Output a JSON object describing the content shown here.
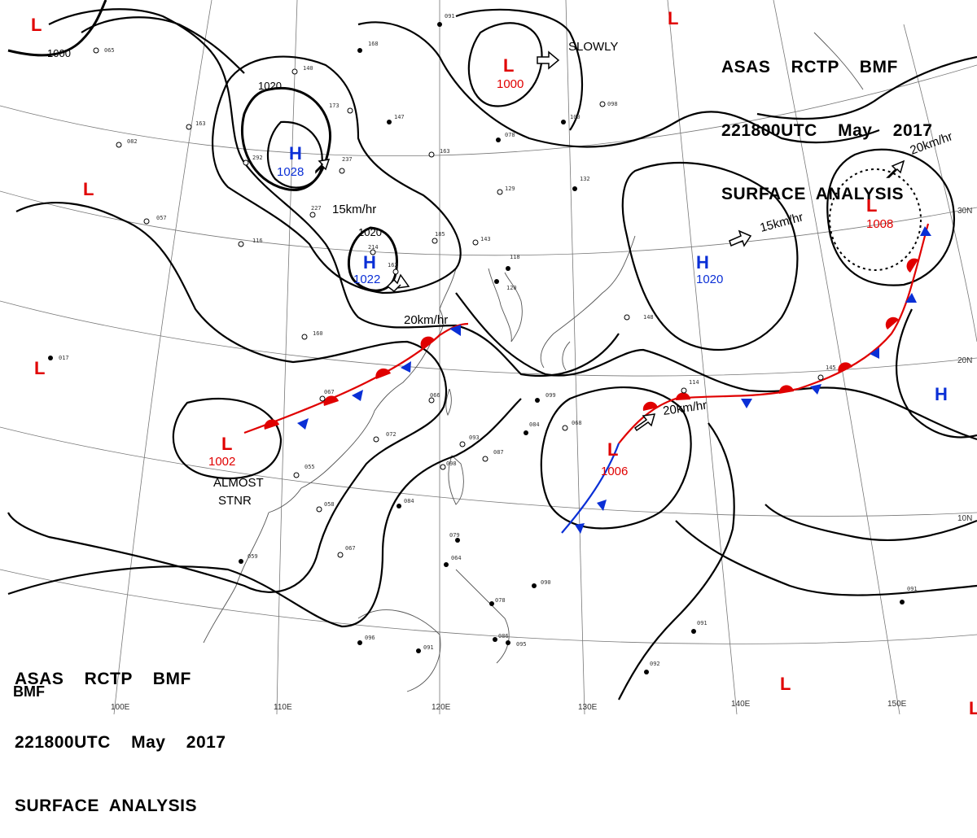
{
  "header": {
    "line1": "ASAS    RCTP    BMF",
    "line2": "221800UTC    May    2017",
    "line3": "SURFACE  ANALYSIS"
  },
  "footer": {
    "line1": "ASAS    RCTP    BMF",
    "line2": "221800UTC    May    2017",
    "line3": "SURFACE  ANALYSIS",
    "tag": "BMF"
  },
  "isobar_labels": [
    "1000",
    "1020",
    "1020"
  ],
  "systems": [
    {
      "type": "H",
      "pressure": "1028"
    },
    {
      "type": "H",
      "pressure": "1022"
    },
    {
      "type": "H",
      "pressure": "1020"
    },
    {
      "type": "H",
      "pressure": ""
    },
    {
      "type": "L",
      "pressure": "1000"
    },
    {
      "type": "L",
      "pressure": "1008"
    },
    {
      "type": "L",
      "pressure": "1002"
    },
    {
      "type": "L",
      "pressure": "1006"
    },
    {
      "type": "L",
      "pressure": ""
    },
    {
      "type": "L",
      "pressure": ""
    },
    {
      "type": "L",
      "pressure": ""
    },
    {
      "type": "L",
      "pressure": ""
    },
    {
      "type": "L",
      "pressure": ""
    },
    {
      "type": "L",
      "pressure": ""
    }
  ],
  "motion_labels": [
    "SLOWLY",
    "15km/hr",
    "20km/hr",
    "15km/hr",
    "20km/hr",
    "20km/hr"
  ],
  "stationary_note": [
    "ALMOST",
    "STNR"
  ],
  "lon_labels": [
    "100E",
    "110E",
    "120E",
    "130E",
    "140E",
    "150E"
  ],
  "lat_labels": [
    "30N",
    "20N",
    "10N"
  ],
  "stations": [
    "091",
    "168",
    "140",
    "173",
    "147",
    "163",
    "078",
    "100",
    "098",
    "132",
    "129",
    "185",
    "143",
    "118",
    "120",
    "162",
    "148",
    "214",
    "227",
    "237",
    "292",
    "163",
    "065",
    "082",
    "057",
    "116",
    "017",
    "160",
    "067",
    "066",
    "072",
    "055",
    "058",
    "084",
    "099",
    "084",
    "068",
    "093",
    "087",
    "098",
    "079",
    "064",
    "078",
    "090",
    "095",
    "086",
    "091",
    "096",
    "059",
    "067",
    "145",
    "114",
    "091",
    "092",
    "091"
  ],
  "colors": {
    "low": "#e00000",
    "high": "#0a2fd6",
    "isobar": "#000000",
    "warm_front": "#e00000",
    "cold_front": "#0a2fd6",
    "coast": "#555555",
    "grid": "#777777"
  }
}
